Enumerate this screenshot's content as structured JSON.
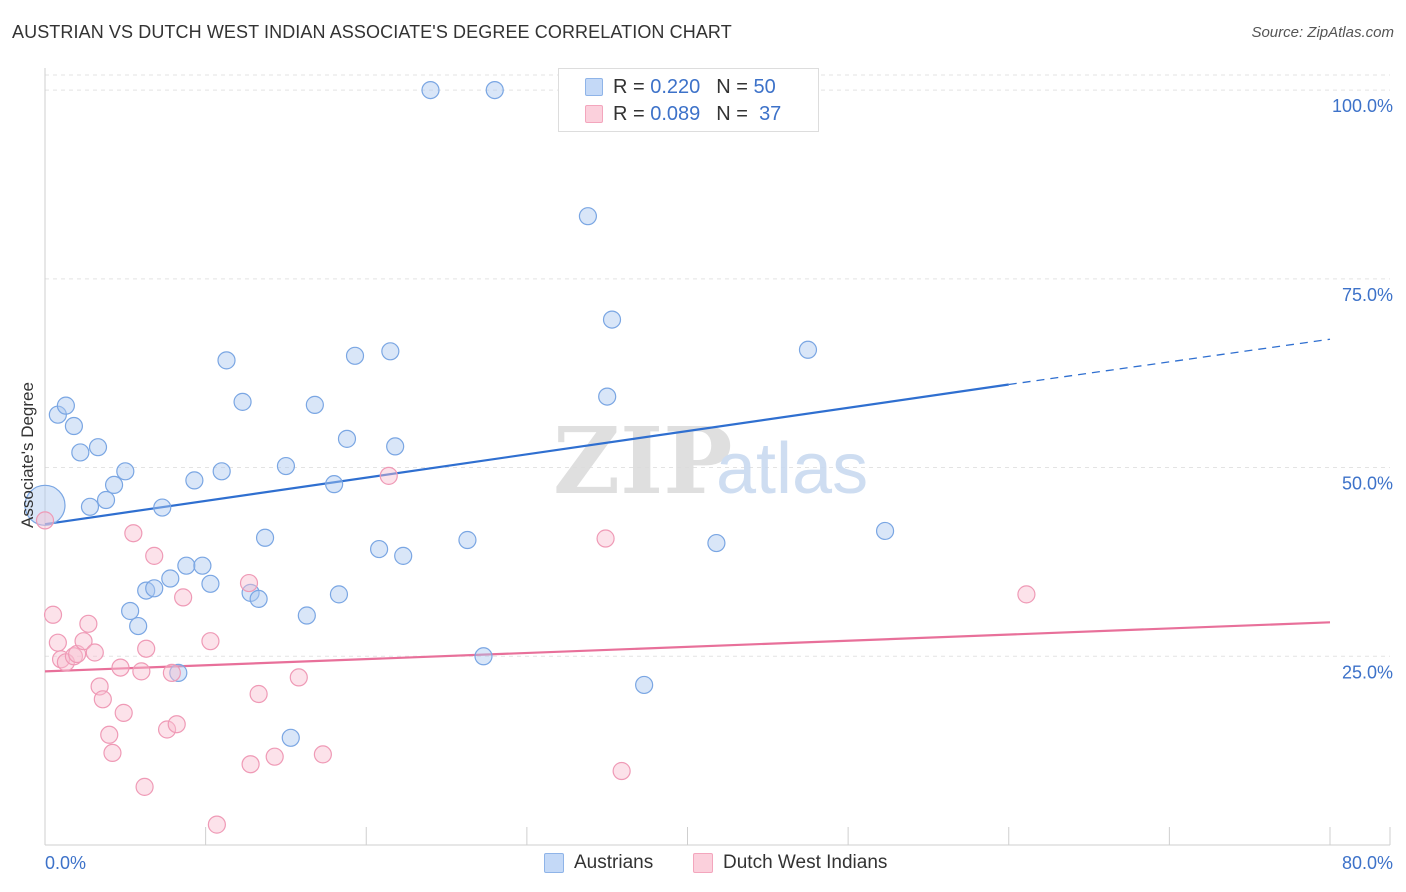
{
  "title": "AUSTRIAN VS DUTCH WEST INDIAN ASSOCIATE'S DEGREE CORRELATION CHART",
  "source": "Source: ZipAtlas.com",
  "watermark": {
    "zip": "ZIP",
    "atlas": "atlas"
  },
  "legend": {
    "rows": [
      {
        "r_label": "R =",
        "r_value": "0.220",
        "n_label": "N =",
        "n_value": "50"
      },
      {
        "r_label": "R =",
        "r_value": "0.089",
        "n_label": "N =",
        "n_value": "37"
      }
    ],
    "bottom": [
      "Austrians",
      "Dutch West Indians"
    ]
  },
  "chart_data": {
    "type": "scatter",
    "title": "AUSTRIAN VS DUTCH WEST INDIAN ASSOCIATE'S DEGREE CORRELATION CHART",
    "xlabel": "",
    "ylabel": "Associate's Degree",
    "xlim": [
      0,
      80
    ],
    "ylim": [
      0,
      102
    ],
    "x_tick_labels": [
      "0.0%",
      "80.0%"
    ],
    "y_ticks": [
      25,
      50,
      75,
      100
    ],
    "y_tick_labels": [
      "25.0%",
      "50.0%",
      "75.0%",
      "100.0%"
    ],
    "grid": true,
    "colors": {
      "Austrians": "#2f6fd0",
      "Dutch West Indians": "#e8709a"
    },
    "series": [
      {
        "name": "Austrians",
        "r": 0.22,
        "n": 50,
        "trend": {
          "x0": 0,
          "y0": 42.5,
          "x1": 60,
          "y1": 61.0,
          "dash_x1": 80,
          "dash_y1": 67.0
        },
        "points": [
          [
            0.0,
            45.0
          ],
          [
            0.8,
            57.0
          ],
          [
            1.3,
            58.2
          ],
          [
            1.8,
            55.5
          ],
          [
            2.2,
            52.0
          ],
          [
            2.8,
            44.8
          ],
          [
            3.3,
            52.7
          ],
          [
            3.8,
            45.7
          ],
          [
            4.3,
            47.7
          ],
          [
            5.0,
            49.5
          ],
          [
            5.3,
            31.0
          ],
          [
            5.8,
            29.0
          ],
          [
            6.3,
            33.7
          ],
          [
            6.8,
            34.0
          ],
          [
            7.3,
            44.7
          ],
          [
            7.8,
            35.3
          ],
          [
            8.3,
            22.8
          ],
          [
            8.8,
            37.0
          ],
          [
            9.3,
            48.3
          ],
          [
            9.8,
            37.0
          ],
          [
            10.3,
            34.6
          ],
          [
            11.0,
            49.5
          ],
          [
            11.3,
            64.2
          ],
          [
            12.3,
            58.7
          ],
          [
            12.8,
            33.4
          ],
          [
            13.3,
            32.6
          ],
          [
            13.7,
            40.7
          ],
          [
            15.0,
            50.2
          ],
          [
            15.3,
            14.2
          ],
          [
            16.3,
            30.4
          ],
          [
            16.8,
            58.3
          ],
          [
            18.0,
            47.8
          ],
          [
            18.3,
            33.2
          ],
          [
            18.8,
            53.8
          ],
          [
            19.3,
            64.8
          ],
          [
            20.8,
            39.2
          ],
          [
            21.5,
            65.4
          ],
          [
            21.8,
            52.8
          ],
          [
            22.3,
            38.3
          ],
          [
            24.0,
            100.0
          ],
          [
            26.3,
            40.4
          ],
          [
            27.3,
            25.0
          ],
          [
            28.0,
            100.0
          ],
          [
            33.8,
            83.3
          ],
          [
            35.0,
            59.4
          ],
          [
            35.3,
            69.6
          ],
          [
            37.3,
            21.2
          ],
          [
            41.8,
            40.0
          ],
          [
            47.5,
            65.6
          ],
          [
            52.3,
            41.6
          ]
        ]
      },
      {
        "name": "Dutch West Indians",
        "r": 0.089,
        "n": 37,
        "trend": {
          "x0": 0,
          "y0": 23.0,
          "x1": 80,
          "y1": 29.5
        },
        "points": [
          [
            0.0,
            43.0
          ],
          [
            0.5,
            30.5
          ],
          [
            0.8,
            26.8
          ],
          [
            1.0,
            24.6
          ],
          [
            1.3,
            24.2
          ],
          [
            1.8,
            25.0
          ],
          [
            2.0,
            25.3
          ],
          [
            2.4,
            27.0
          ],
          [
            2.7,
            29.3
          ],
          [
            3.1,
            25.5
          ],
          [
            3.4,
            21.0
          ],
          [
            3.6,
            19.3
          ],
          [
            4.0,
            14.6
          ],
          [
            4.2,
            12.2
          ],
          [
            4.7,
            23.5
          ],
          [
            4.9,
            17.5
          ],
          [
            5.5,
            41.3
          ],
          [
            6.0,
            23.0
          ],
          [
            6.2,
            7.7
          ],
          [
            6.3,
            26.0
          ],
          [
            6.8,
            38.3
          ],
          [
            7.6,
            15.3
          ],
          [
            7.9,
            22.8
          ],
          [
            8.2,
            16.0
          ],
          [
            8.6,
            32.8
          ],
          [
            10.3,
            27.0
          ],
          [
            10.7,
            2.7
          ],
          [
            12.7,
            34.7
          ],
          [
            12.8,
            10.7
          ],
          [
            13.3,
            20.0
          ],
          [
            14.3,
            11.7
          ],
          [
            15.8,
            22.2
          ],
          [
            17.3,
            12.0
          ],
          [
            21.4,
            48.9
          ],
          [
            34.9,
            40.6
          ],
          [
            35.9,
            9.8
          ],
          [
            61.1,
            33.2
          ]
        ]
      }
    ]
  }
}
